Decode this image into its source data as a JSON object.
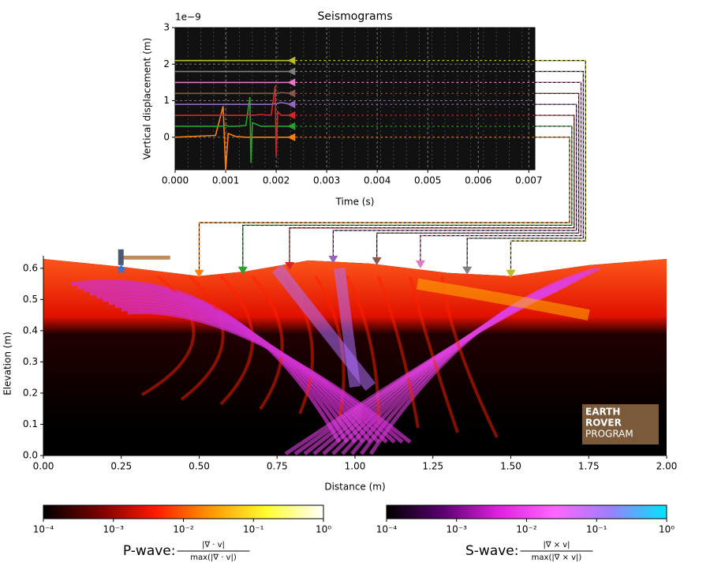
{
  "chart_data": [
    {
      "type": "line",
      "title": "Seismograms",
      "offset_label": "1e−9",
      "xlabel": "Time (s)",
      "ylabel": "Vertical displacement (m)",
      "xlim": [
        0,
        0.00712
      ],
      "ylim": [
        -0.89,
        3
      ],
      "xticks": [
        {
          "value": 0,
          "label": "0.000"
        },
        0.001,
        0.002,
        0.003,
        0.004,
        0.005,
        0.006,
        0.007
      ],
      "yticks": [
        0,
        1,
        2,
        3
      ],
      "grid": true,
      "background": "#111111",
      "x": [
        0,
        0.0008,
        0.00095,
        0.001,
        0.00105,
        0.0012,
        0.0014,
        0.00148,
        0.0015,
        0.00153,
        0.0017,
        0.0019,
        0.00198,
        0.002,
        0.00203,
        0.0021,
        0.0023
      ],
      "series": [
        {
          "color": "#ff7f0e",
          "values": [
            0,
            0.05,
            0.85,
            -0.9,
            0.1,
            0.02,
            0,
            0,
            0,
            0,
            0,
            0,
            0,
            0,
            0,
            0,
            0
          ]
        },
        {
          "color": "#2ca02c",
          "values": [
            0.3,
            0.3,
            0.3,
            0.33,
            0.3,
            0.3,
            0.32,
            1.1,
            -0.7,
            0.4,
            0.3,
            0.3,
            0.3,
            0.3,
            0.3,
            0.3,
            0.3
          ]
        },
        {
          "color": "#d62728",
          "values": [
            0.6,
            0.6,
            0.6,
            0.6,
            0.6,
            0.6,
            0.6,
            0.62,
            0.6,
            0.6,
            0.62,
            0.6,
            1.4,
            -0.5,
            0.7,
            0.6,
            0.6
          ]
        },
        {
          "color": "#9467bd",
          "values": [
            0.9,
            0.9,
            0.9,
            0.9,
            0.9,
            0.9,
            0.9,
            0.9,
            0.9,
            0.9,
            0.9,
            0.9,
            0.92,
            0.9,
            0.93,
            0.95,
            0.9
          ]
        },
        {
          "color": "#8c564b",
          "values": [
            1.2,
            1.2,
            1.2,
            1.2,
            1.2,
            1.2,
            1.2,
            1.2,
            1.2,
            1.2,
            1.2,
            1.2,
            1.2,
            1.2,
            1.2,
            1.22,
            1.2
          ]
        },
        {
          "color": "#e377c2",
          "values": [
            1.5,
            1.5,
            1.5,
            1.5,
            1.5,
            1.5,
            1.5,
            1.5,
            1.5,
            1.5,
            1.5,
            1.5,
            1.5,
            1.5,
            1.5,
            1.5,
            1.5
          ]
        },
        {
          "color": "#7f7f7f",
          "values": [
            1.8,
            1.8,
            1.8,
            1.8,
            1.8,
            1.8,
            1.8,
            1.8,
            1.8,
            1.8,
            1.8,
            1.8,
            1.8,
            1.8,
            1.8,
            1.8,
            1.8
          ]
        },
        {
          "color": "#bcbd22",
          "values": [
            2.1,
            2.1,
            2.1,
            2.1,
            2.1,
            2.1,
            2.1,
            2.1,
            2.1,
            2.1,
            2.1,
            2.1,
            2.1,
            2.1,
            2.1,
            2.1,
            2.1
          ]
        }
      ]
    },
    {
      "type": "image",
      "xlabel": "Distance (m)",
      "ylabel": "Elevation (m)",
      "xlim": [
        0,
        2
      ],
      "ylim": [
        0,
        0.64
      ],
      "xticks": [
        {
          "value": 0,
          "label": "0.00"
        },
        0.25,
        {
          "value": 0.5,
          "label": "0.50"
        },
        0.75,
        {
          "value": 1,
          "label": "1.00"
        },
        1.25,
        {
          "value": 1.5,
          "label": "1.50"
        },
        1.75,
        {
          "value": 2,
          "label": "2.00"
        }
      ],
      "yticks": [
        {
          "value": 0,
          "label": "0.0"
        },
        0.1,
        0.2,
        0.3,
        0.4,
        0.5,
        0.6
      ],
      "source": {
        "x": 0.25,
        "y": 0.6
      },
      "receivers": {
        "x": [
          0.5,
          0.64,
          0.79,
          0.93,
          1.07,
          1.21,
          1.36,
          1.5
        ],
        "y": [
          0.575,
          0.585,
          0.6,
          0.62,
          0.615,
          0.605,
          0.585,
          0.575
        ]
      },
      "logo": [
        "EARTH",
        "ROVER",
        "PROGRAM"
      ]
    },
    {
      "type": "colorbar",
      "label": "P-wave:",
      "numerator": "|∇ · v|",
      "denominator": "max(|∇ · v|)",
      "log": true,
      "xlim": [
        0.0001,
        1
      ],
      "xticks": [
        {
          "value": 0.0001,
          "label": "10⁻⁴"
        },
        {
          "value": 0.001,
          "label": "10⁻³"
        },
        {
          "value": 0.01,
          "label": "10⁻²"
        },
        {
          "value": 0.1,
          "label": "10⁻¹"
        },
        {
          "value": 1,
          "label": "10⁰"
        }
      ],
      "colors": [
        "#000000",
        "#7a0000",
        "#ff1a00",
        "#ff9900",
        "#ffff33",
        "#ffffff"
      ]
    },
    {
      "type": "colorbar",
      "label": "S-wave:",
      "numerator": "|∇ × v|",
      "denominator": "max(|∇ × v|)",
      "log": true,
      "xlim": [
        0.0001,
        1
      ],
      "xticks": [
        {
          "value": 0.0001,
          "label": "10⁻⁴"
        },
        {
          "value": 0.001,
          "label": "10⁻³"
        },
        {
          "value": 0.01,
          "label": "10⁻²"
        },
        {
          "value": 0.1,
          "label": "10⁻¹"
        },
        {
          "value": 1,
          "label": "10⁰"
        }
      ],
      "colors": [
        "#000000",
        "#5a0070",
        "#e020e0",
        "#ff66ff",
        "#9a80ff",
        "#00e5ff"
      ]
    }
  ]
}
